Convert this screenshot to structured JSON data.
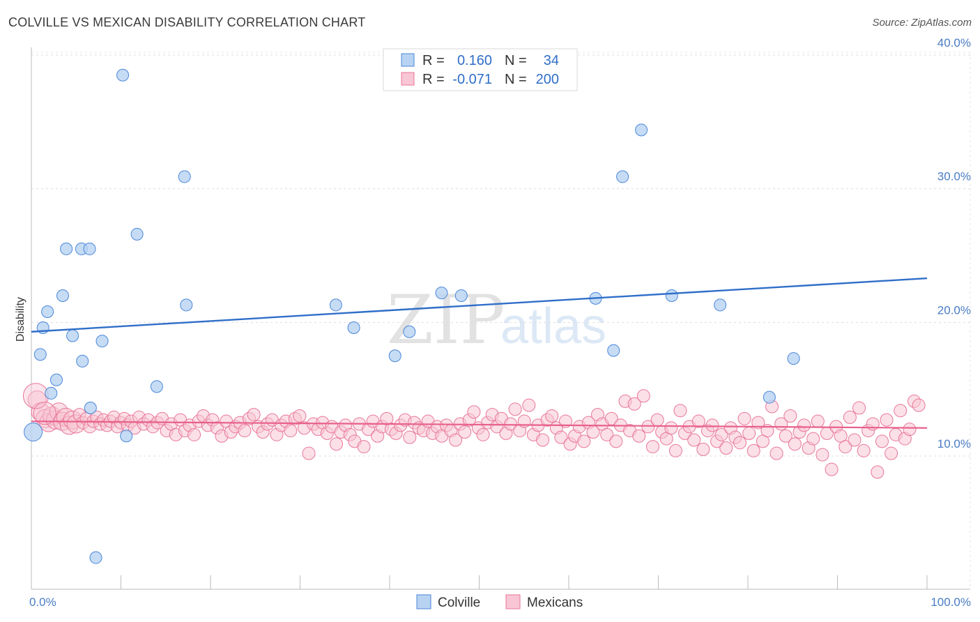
{
  "title": "COLVILLE VS MEXICAN DISABILITY CORRELATION CHART",
  "source": "Source: ZipAtlas.com",
  "watermark": {
    "zip": "ZIP",
    "atlas": "atlas"
  },
  "legend_top": {
    "rows": [
      {
        "r_label": "R =",
        "r_value": "0.160",
        "n_label": "N =",
        "n_value": "34",
        "color": "#b8d3f2"
      },
      {
        "r_label": "R =",
        "r_value": "-0.071",
        "n_label": "N =",
        "n_value": "200",
        "color": "#f8c6d4"
      }
    ]
  },
  "legend_bottom": [
    "Colville",
    "Mexicans"
  ],
  "chart_data": {
    "type": "scatter",
    "title": "COLVILLE VS MEXICAN DISABILITY CORRELATION CHART",
    "xlabel": "",
    "ylabel": "Disability",
    "xlim": [
      0,
      100
    ],
    "ylim": [
      0,
      42
    ],
    "x_tick_labels": [
      "0.0%",
      "100.0%"
    ],
    "y_ticks": [
      10,
      20,
      30,
      40
    ],
    "y_tick_labels": [
      "10.0%",
      "20.0%",
      "30.0%",
      "40.0%"
    ],
    "grid": true,
    "legend_placement": "top-center",
    "series": [
      {
        "name": "Colville",
        "color": "#4a86d8",
        "fill": "#b8d3f2",
        "trend": {
          "x": [
            0,
            100
          ],
          "y": [
            19.3,
            23.3
          ]
        },
        "points": [
          [
            1,
            17.6
          ],
          [
            1.3,
            19.6
          ],
          [
            1.8,
            20.8
          ],
          [
            2.2,
            14.7
          ],
          [
            2.8,
            15.7
          ],
          [
            3.5,
            22
          ],
          [
            3.9,
            25.5
          ],
          [
            4.6,
            19
          ],
          [
            5.6,
            25.5
          ],
          [
            5.7,
            17.1
          ],
          [
            6.5,
            25.5
          ],
          [
            6.6,
            13.6
          ],
          [
            7.2,
            2.4
          ],
          [
            7.9,
            18.6
          ],
          [
            10.2,
            38.5
          ],
          [
            10.6,
            11.5
          ],
          [
            11.8,
            26.6
          ],
          [
            14,
            15.2
          ],
          [
            17.1,
            30.9
          ],
          [
            17.3,
            21.3
          ],
          [
            34,
            21.3
          ],
          [
            36,
            19.6
          ],
          [
            40.6,
            17.5
          ],
          [
            42.2,
            19.3
          ],
          [
            45.8,
            22.2
          ],
          [
            48,
            22
          ],
          [
            63,
            21.8
          ],
          [
            66,
            30.9
          ],
          [
            65,
            17.9
          ],
          [
            68.1,
            34.4
          ],
          [
            71.5,
            22
          ],
          [
            76.9,
            21.3
          ],
          [
            82.4,
            14.4
          ],
          [
            85.1,
            17.3
          ]
        ]
      },
      {
        "name": "Mexicans",
        "color": "#e8769a",
        "fill": "#f8c6d4",
        "trend": {
          "x": [
            0,
            100
          ],
          "y": [
            12.6,
            12.1
          ]
        },
        "points": [
          [
            0.5,
            14.2
          ],
          [
            0.8,
            13.3
          ],
          [
            1.2,
            12.8
          ],
          [
            1.5,
            12.5
          ],
          [
            1.8,
            13
          ],
          [
            2.1,
            12.7
          ],
          [
            2.4,
            13.3
          ],
          [
            2.7,
            12.6
          ],
          [
            3,
            12.9
          ],
          [
            3.3,
            12.3
          ],
          [
            3.6,
            12.7
          ],
          [
            3.9,
            12.4
          ],
          [
            4.2,
            13.1
          ],
          [
            4.5,
            12.5
          ],
          [
            4.8,
            12.8
          ],
          [
            5.1,
            12.2
          ],
          [
            5.4,
            12.6
          ],
          [
            5.7,
            12.9
          ],
          [
            6,
            12.4
          ],
          [
            6.3,
            12.7
          ],
          [
            6.6,
            12.3
          ],
          [
            6.9,
            12.6
          ],
          [
            7.2,
            12.9
          ],
          [
            7.5,
            12.2
          ],
          [
            7.8,
            12.5
          ],
          [
            8.1,
            12.8
          ],
          [
            8.4,
            12.3
          ],
          [
            8.7,
            12.6
          ],
          [
            9,
            12.1
          ],
          [
            9.4,
            12.9
          ],
          [
            9.8,
            12.4
          ],
          [
            10.2,
            12.7
          ],
          [
            10.6,
            12.2
          ],
          [
            11,
            12.5
          ],
          [
            11.4,
            12.8
          ],
          [
            11.8,
            11.9
          ],
          [
            12.2,
            12.4
          ],
          [
            12.6,
            11.6
          ],
          [
            13,
            12.7
          ],
          [
            13.4,
            11.9
          ],
          [
            13.8,
            12.3
          ],
          [
            14.2,
            11.6
          ],
          [
            14.6,
            12.6
          ],
          [
            15,
            13
          ],
          [
            15.4,
            12.3
          ],
          [
            15.8,
            12.7
          ],
          [
            16.2,
            12.1
          ],
          [
            16.6,
            11.5
          ],
          [
            17,
            12.6
          ],
          [
            17.4,
            11.8
          ],
          [
            17.8,
            12.2
          ],
          [
            18.2,
            12.5
          ],
          [
            18.6,
            11.9
          ],
          [
            19,
            12.8
          ],
          [
            19.4,
            13.1
          ],
          [
            19.8,
            12.2
          ],
          [
            20.2,
            11.8
          ],
          [
            20.6,
            12.4
          ],
          [
            21,
            12.7
          ],
          [
            21.4,
            11.6
          ],
          [
            21.8,
            12.3
          ],
          [
            22.2,
            12.6
          ],
          [
            22.6,
            11.9
          ],
          [
            23,
            12.8
          ],
          [
            23.4,
            13
          ],
          [
            23.8,
            12.1
          ],
          [
            24.2,
            10.2
          ],
          [
            24.6,
            12.4
          ],
          [
            25,
            12
          ],
          [
            25.4,
            12.5
          ],
          [
            25.8,
            11.7
          ],
          [
            26.2,
            12.2
          ],
          [
            26.6,
            10.9
          ],
          [
            27,
            11.8
          ],
          [
            27.4,
            12.3
          ],
          [
            27.8,
            11.6
          ],
          [
            28.2,
            11.1
          ],
          [
            28.6,
            12.4
          ],
          [
            29,
            10.7
          ],
          [
            29.4,
            12
          ],
          [
            29.8,
            12.6
          ],
          [
            30.2,
            11.5
          ],
          [
            30.6,
            12.2
          ],
          [
            31,
            12.8
          ],
          [
            31.4,
            12
          ],
          [
            31.8,
            11.7
          ],
          [
            32.2,
            12.3
          ],
          [
            32.6,
            12.7
          ],
          [
            33,
            11.4
          ],
          [
            33.4,
            12.5
          ],
          [
            33.8,
            12.1
          ],
          [
            34.2,
            11.9
          ],
          [
            34.6,
            12.6
          ],
          [
            35,
            11.7
          ],
          [
            35.4,
            12.2
          ],
          [
            35.8,
            11.5
          ],
          [
            36.2,
            12.3
          ],
          [
            36.6,
            11.9
          ],
          [
            37,
            11.2
          ],
          [
            37.4,
            12.4
          ],
          [
            37.8,
            11.8
          ],
          [
            38.2,
            12.7
          ],
          [
            38.6,
            13.3
          ],
          [
            39,
            12.1
          ],
          [
            39.4,
            11.6
          ],
          [
            39.8,
            12.5
          ],
          [
            40.2,
            13.1
          ],
          [
            40.6,
            12.2
          ],
          [
            41,
            12.8
          ],
          [
            41.4,
            11.7
          ],
          [
            41.8,
            12.4
          ],
          [
            42.2,
            13.5
          ],
          [
            42.6,
            11.9
          ],
          [
            43,
            12.6
          ],
          [
            43.4,
            13.8
          ],
          [
            43.8,
            11.6
          ],
          [
            44.2,
            12.3
          ],
          [
            44.6,
            11.2
          ],
          [
            45,
            12.7
          ],
          [
            45.4,
            13
          ],
          [
            45.8,
            12.1
          ],
          [
            46.2,
            11.4
          ],
          [
            46.6,
            12.6
          ],
          [
            47,
            10.9
          ],
          [
            47.4,
            11.5
          ],
          [
            47.8,
            12.2
          ],
          [
            48.2,
            11.1
          ],
          [
            48.6,
            12.5
          ],
          [
            49,
            11.8
          ],
          [
            49.4,
            13.1
          ],
          [
            49.8,
            12.4
          ],
          [
            50.2,
            11.6
          ],
          [
            50.6,
            12.8
          ],
          [
            51,
            11.1
          ],
          [
            51.4,
            12.3
          ],
          [
            51.8,
            14.1
          ],
          [
            52.2,
            11.9
          ],
          [
            52.6,
            13.9
          ],
          [
            53,
            11.5
          ],
          [
            53.4,
            14.5
          ],
          [
            53.8,
            12.2
          ],
          [
            54.2,
            10.7
          ],
          [
            54.6,
            12.7
          ],
          [
            55,
            11.8
          ],
          [
            55.4,
            11.3
          ],
          [
            55.8,
            12.1
          ],
          [
            56.2,
            10.4
          ],
          [
            56.6,
            13.4
          ],
          [
            57,
            11.7
          ],
          [
            57.4,
            12.2
          ],
          [
            57.8,
            11.2
          ],
          [
            58.2,
            12.6
          ],
          [
            58.6,
            10.5
          ],
          [
            59,
            11.9
          ],
          [
            59.4,
            12.3
          ],
          [
            59.8,
            11.1
          ],
          [
            60.2,
            11.6
          ],
          [
            60.6,
            10.6
          ],
          [
            61,
            12.1
          ],
          [
            61.4,
            11.4
          ],
          [
            61.8,
            11
          ],
          [
            62.2,
            12.8
          ],
          [
            62.6,
            11.7
          ],
          [
            63,
            10.4
          ],
          [
            63.4,
            12.5
          ],
          [
            63.8,
            11.1
          ],
          [
            64.2,
            11.9
          ],
          [
            64.6,
            13.7
          ],
          [
            65,
            10.2
          ],
          [
            65.4,
            12.4
          ],
          [
            65.8,
            11.5
          ],
          [
            66.2,
            13
          ],
          [
            66.6,
            10.9
          ],
          [
            67,
            11.8
          ],
          [
            67.4,
            12.3
          ],
          [
            67.8,
            10.6
          ],
          [
            68.2,
            11.3
          ],
          [
            68.6,
            12.6
          ],
          [
            69,
            10.1
          ],
          [
            69.4,
            11.7
          ],
          [
            69.8,
            9
          ],
          [
            70.2,
            12.2
          ],
          [
            70.6,
            11.5
          ],
          [
            71,
            10.7
          ],
          [
            71.4,
            12.9
          ],
          [
            71.8,
            11.2
          ],
          [
            72.2,
            13.6
          ],
          [
            72.6,
            10.4
          ],
          [
            73,
            11.9
          ],
          [
            73.4,
            12.4
          ],
          [
            73.8,
            8.8
          ],
          [
            74.2,
            11.1
          ],
          [
            74.6,
            12.7
          ],
          [
            75,
            10.2
          ],
          [
            75.4,
            11.6
          ],
          [
            75.8,
            13.4
          ],
          [
            76.2,
            11.3
          ],
          [
            76.6,
            12
          ],
          [
            77,
            14.1
          ],
          [
            77.4,
            13.8
          ]
        ]
      }
    ]
  }
}
